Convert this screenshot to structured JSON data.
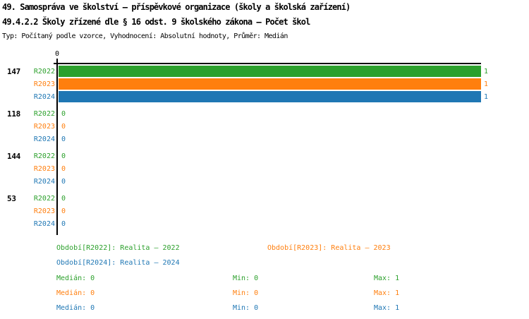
{
  "header": {
    "title_line1": "49. Samospráva ve školství – příspěvkové organizace (školy a školská zařízení)",
    "title_line2": "49.4.2.2 Školy zřízené dle § 16 odst. 9 školského zákona – Počet škol",
    "subtitle": "Typ: Počítaný podle vzorce, Vyhodnocení: Absolutní hodnoty, Průměr: Medián"
  },
  "chart_data": {
    "type": "bar",
    "orientation": "horizontal",
    "title": "49.4.2.2 Školy zřízené dle § 16 odst. 9 školského zákona – Počet škol",
    "xlabel": "",
    "ylabel": "",
    "xlim": [
      0,
      1
    ],
    "x_tick_labels": [
      "0"
    ],
    "grid": false,
    "legend_position": "bottom",
    "categories": [
      "147",
      "118",
      "144",
      "53"
    ],
    "series": [
      {
        "name": "R2022",
        "color": "#2ca02c",
        "values": [
          1,
          0,
          0,
          0
        ]
      },
      {
        "name": "R2023",
        "color": "#ff7f0e",
        "values": [
          1,
          0,
          0,
          0
        ]
      },
      {
        "name": "R2024",
        "color": "#1f77b4",
        "values": [
          1,
          0,
          0,
          0
        ]
      }
    ]
  },
  "axis": {
    "tick_zero": "0",
    "color": "#000000"
  },
  "legend": {
    "items": [
      {
        "label": "Období[R2022]: Realita – 2022",
        "color": "#2ca02c"
      },
      {
        "label": "Období[R2023]: Realita – 2023",
        "color": "#ff7f0e"
      },
      {
        "label": "Období[R2024]: Realita – 2024",
        "color": "#1f77b4"
      }
    ]
  },
  "stats": {
    "rows": [
      {
        "median": "Medián: 0",
        "min": "Min: 0",
        "max": "Max: 1",
        "color": "#2ca02c"
      },
      {
        "median": "Medián: 0",
        "min": "Min: 0",
        "max": "Max: 1",
        "color": "#ff7f0e"
      },
      {
        "median": "Medián: 0",
        "min": "Min: 0",
        "max": "Max: 1",
        "color": "#1f77b4"
      }
    ]
  }
}
